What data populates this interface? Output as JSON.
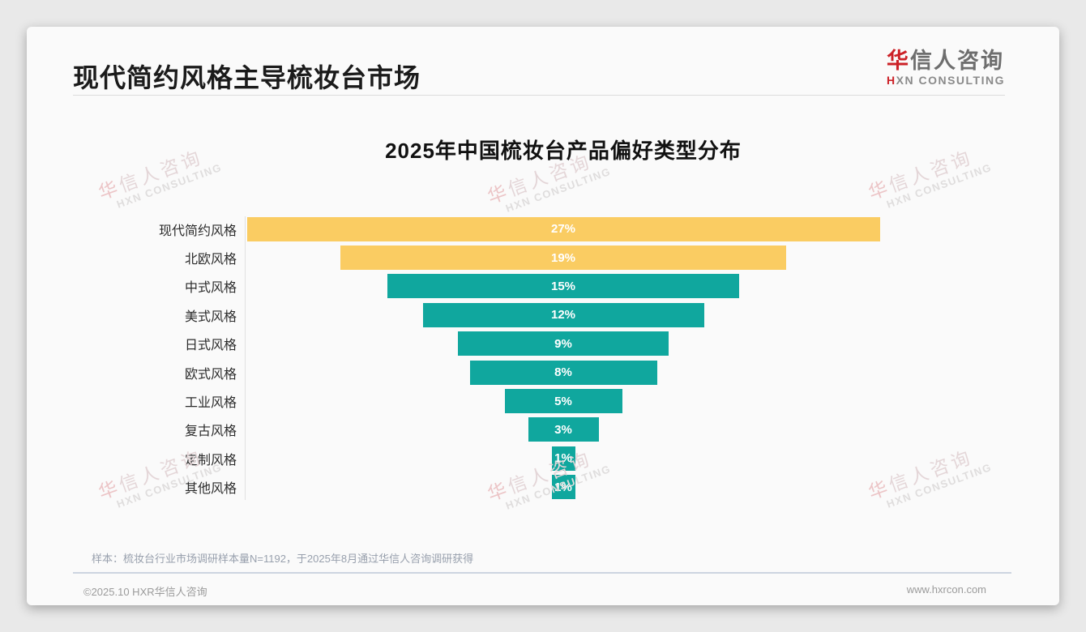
{
  "header": {
    "title": "现代简约风格主导梳妆台市场"
  },
  "logo": {
    "cn_first": "华",
    "cn_rest": "信人咨询",
    "en_first": "H",
    "en_rest": "XN CONSULTING"
  },
  "watermark": {
    "cn_first": "华",
    "cn_rest": "信人咨询",
    "en": "HXN CONSULTING"
  },
  "chart_data": {
    "type": "bar",
    "variant": "centered-funnel-horizontal",
    "title": "2025年中国梳妆台产品偏好类型分布",
    "categories": [
      "现代简约风格",
      "北欧风格",
      "中式风格",
      "美式风格",
      "日式风格",
      "欧式风格",
      "工业风格",
      "复古风格",
      "定制风格",
      "其他风格"
    ],
    "values": [
      27,
      19,
      15,
      12,
      9,
      8,
      5,
      3,
      1,
      1
    ],
    "value_labels": [
      "27%",
      "19%",
      "15%",
      "12%",
      "9%",
      "8%",
      "5%",
      "3%",
      "1%",
      "1%"
    ],
    "unit": "%",
    "xlim": [
      0,
      27
    ],
    "highlight_count": 2,
    "highlight_color": "#FACC62",
    "base_color": "#10A79E",
    "value_label_color": "#FFFFFF",
    "grid": false,
    "legend": false
  },
  "footnote": "样本：梳妆台行业市场调研样本量N=1192，于2025年8月通过华信人咨询调研获得",
  "footer": {
    "copyright": "©2025.10 HXR华信人咨询",
    "website": "www.hxrcon.com"
  }
}
